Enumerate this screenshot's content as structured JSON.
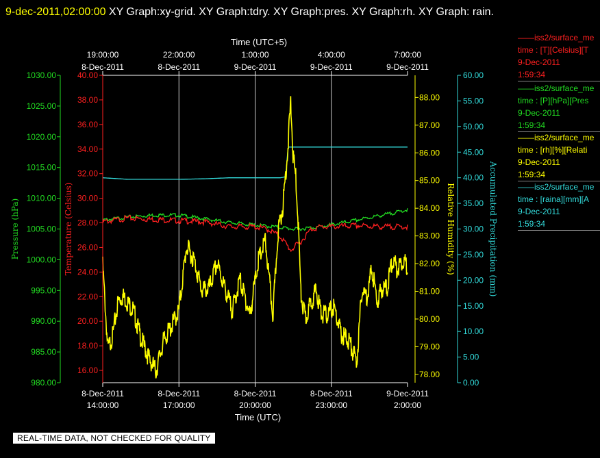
{
  "header": {
    "date": "9-dec-2011,02:00:00",
    "graphs": "  XY Graph:xy-grid.  XY Graph:tdry.  XY Graph:pres.  XY Graph:rh.  XY Graph: rain."
  },
  "disclaimer": "REAL-TIME DATA, NOT CHECKED FOR QUALITY",
  "legend": [
    {
      "line1": "iss2/surface_me",
      "line2": "time : [T][Celsius][T",
      "line3": "9-Dec-2011",
      "line4": "1:59:34",
      "color": "#ff2020"
    },
    {
      "line1": "iss2/surface_me",
      "line2": "time : [P][hPa][Pres",
      "line3": "9-Dec-2011",
      "line4": "1:59:34",
      "color": "#22dd22"
    },
    {
      "line1": "iss2/surface_me",
      "line2": "time : [rh][%][Relati",
      "line3": "9-Dec-2011",
      "line4": "1:59:34",
      "color": "#ffff00"
    },
    {
      "line1": "iss2/surface_me",
      "line2": "time : [raina][mm][A",
      "line3": "9-Dec-2011",
      "line4": "1:59:34",
      "color": "#33dddd"
    }
  ],
  "chart_data": {
    "type": "line",
    "x_axis_bottom": {
      "label": "Time (UTC)",
      "ticks": [
        {
          "date": "8-Dec-2011",
          "time": "14:00:00"
        },
        {
          "date": "8-Dec-2011",
          "time": "17:00:00"
        },
        {
          "date": "8-Dec-2011",
          "time": "20:00:00"
        },
        {
          "date": "8-Dec-2011",
          "time": "23:00:00"
        },
        {
          "date": "9-Dec-2011",
          "time": "2:00:00"
        }
      ],
      "range": [
        "8-Dec-2011 14:00:00",
        "9-Dec-2011 02:00:00"
      ]
    },
    "x_axis_top": {
      "label": "Time (UTC+5)",
      "ticks": [
        {
          "time": "19:00:00",
          "date": "8-Dec-2011"
        },
        {
          "time": "22:00:00",
          "date": "8-Dec-2011"
        },
        {
          "time": "1:00:00",
          "date": "9-Dec-2011"
        },
        {
          "time": "4:00:00",
          "date": "9-Dec-2011"
        },
        {
          "time": "7:00:00",
          "date": "9-Dec-2011"
        }
      ]
    },
    "grid": "vertical lines at major time ticks",
    "y_axes": [
      {
        "name": "pressure",
        "label": "Pressure (hPa)",
        "color": "#22dd22",
        "range": [
          980,
          1030
        ],
        "ticks": [
          "980.00",
          "985.00",
          "990.00",
          "995.00",
          "1000.00",
          "1005.00",
          "1010.00",
          "1015.00",
          "1020.00",
          "1025.00",
          "1030.00"
        ]
      },
      {
        "name": "temperature",
        "label": "Temperature (Celsius)",
        "color": "#ff2020",
        "range": [
          15,
          40
        ],
        "ticks": [
          "16.00",
          "18.00",
          "20.00",
          "22.00",
          "24.00",
          "26.00",
          "28.00",
          "30.00",
          "32.00",
          "34.00",
          "36.00",
          "38.00",
          "40.00"
        ]
      },
      {
        "name": "rh",
        "label": "Relative Humidity (%)",
        "color": "#ffff00",
        "range": [
          77.7,
          88.8
        ],
        "ticks": [
          "78.00",
          "79.00",
          "80.00",
          "81.00",
          "82.00",
          "83.00",
          "84.00",
          "85.00",
          "86.00",
          "87.00",
          "88.00"
        ]
      },
      {
        "name": "rain",
        "label": "Accumulated Precipitation (mm)",
        "color": "#33dddd",
        "range": [
          0,
          60
        ],
        "ticks": [
          "0.00",
          "5.00",
          "10.00",
          "15.00",
          "20.00",
          "25.00",
          "30.00",
          "35.00",
          "40.00",
          "45.00",
          "50.00",
          "55.00",
          "60.00"
        ]
      }
    ],
    "series": [
      {
        "name": "iss2/surface_me time : [T][Celsius][T",
        "axis": "temperature",
        "color": "#ff2020",
        "x_hours_utc": [
          14,
          15,
          16,
          17,
          18,
          19,
          20,
          20.5,
          21,
          21.4,
          21.8,
          22.2,
          22.6,
          23,
          24,
          25,
          26
        ],
        "values": [
          28.2,
          28.5,
          28.4,
          28.3,
          28.2,
          27.8,
          27.8,
          27.6,
          27.0,
          25.9,
          26.6,
          27.6,
          27.8,
          27.8,
          27.9,
          27.8,
          27.8
        ]
      },
      {
        "name": "iss2/surface_me time : [P][hPa][Pres",
        "axis": "pressure",
        "color": "#22dd22",
        "x_hours_utc": [
          14,
          15,
          16,
          17,
          18,
          19,
          20,
          20.8,
          21.6,
          22.5,
          23.5,
          24.5,
          25,
          25.5,
          26
        ],
        "values": [
          1006.6,
          1007.1,
          1007.4,
          1007.4,
          1006.8,
          1006.2,
          1005.8,
          1005.5,
          1005.1,
          1005.5,
          1006.2,
          1007.0,
          1007.4,
          1007.8,
          1008.3
        ]
      },
      {
        "name": "iss2/surface_me time : [rh][%][Relati",
        "axis": "rh",
        "color": "#ffff00",
        "x_hours_utc": [
          14,
          14.2,
          14.4,
          14.6,
          14.8,
          15.2,
          15.5,
          15.8,
          16.1,
          16.4,
          16.7,
          17,
          17.3,
          17.6,
          17.9,
          18.2,
          18.5,
          18.8,
          19.1,
          19.4,
          19.8,
          20.1,
          20.4,
          20.7,
          20.9,
          21.1,
          21.3,
          21.4,
          21.5,
          21.6,
          21.7,
          21.8,
          21.9,
          22.0,
          22.2,
          22.4,
          22.6,
          22.8,
          23.1,
          23.4,
          23.7,
          24.0,
          24.2,
          24.4,
          24.6,
          24.8,
          25.0,
          25.2,
          25.4,
          25.6,
          25.8,
          26.0
        ],
        "values": [
          82.1,
          79.1,
          79.6,
          80.8,
          81.0,
          80.5,
          79.5,
          78.8,
          78.3,
          79.4,
          79.9,
          80.5,
          82.8,
          82.3,
          81.2,
          81.3,
          82.2,
          81.3,
          80.5,
          81.6,
          80.3,
          82.2,
          83.0,
          80.3,
          83.3,
          84.3,
          86.5,
          88.0,
          86.0,
          85.3,
          83.6,
          81.1,
          80.5,
          80.2,
          80.8,
          81.2,
          80.4,
          80.3,
          80.6,
          79.6,
          79.4,
          78.6,
          81.2,
          81.0,
          82.0,
          80.8,
          81.3,
          81.3,
          82.3,
          82.0,
          82.3,
          82.1
        ]
      },
      {
        "name": "iss2/surface_me time : [raina][mm][A",
        "axis": "rain",
        "color": "#33dddd",
        "x_hours_utc": [
          14,
          15,
          16,
          17,
          18,
          19,
          20,
          21,
          21.2,
          21.3,
          22,
          23,
          24,
          25,
          26
        ],
        "values": [
          40.0,
          39.7,
          39.7,
          39.7,
          39.8,
          40.0,
          40.0,
          40.0,
          40.2,
          46.0,
          46.0,
          46.0,
          46.0,
          46.0,
          46.0
        ]
      }
    ]
  }
}
